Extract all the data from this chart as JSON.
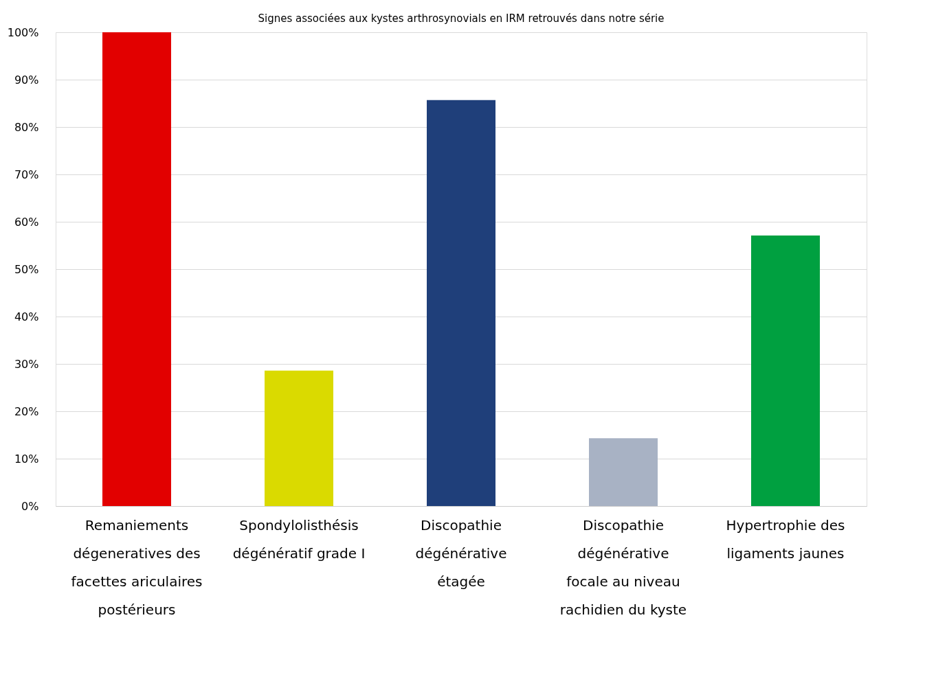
{
  "chart_data": {
    "type": "bar",
    "title": "Signes associées aux kystes arthrosynovials en IRM retrouvés dans notre série",
    "categories": [
      "Remaniements\ndégeneratives des\nfacettes ariculaires\npostérieurs",
      "Spondylolisthésis\ndégénératif grade I",
      "Discopathie\ndégénérative\nétagée",
      "Discopathie\ndégénérative\nfocale au niveau\nrachidien du kyste",
      "Hypertrophie des\nligaments jaunes"
    ],
    "values": [
      100,
      28.6,
      85.7,
      14.3,
      57.1
    ],
    "colors": [
      "#e20000",
      "#dada00",
      "#1f3f7a",
      "#a8b2c4",
      "#00a040"
    ],
    "ylim": [
      0,
      100
    ],
    "yticks": [
      {
        "value": 0,
        "label": "0%"
      },
      {
        "value": 10,
        "label": "10%"
      },
      {
        "value": 20,
        "label": "20%"
      },
      {
        "value": 30,
        "label": "30%"
      },
      {
        "value": 40,
        "label": "40%"
      },
      {
        "value": 50,
        "label": "50%"
      },
      {
        "value": 60,
        "label": "60%"
      },
      {
        "value": 70,
        "label": "70%"
      },
      {
        "value": 80,
        "label": "80%"
      },
      {
        "value": 90,
        "label": "90%"
      },
      {
        "value": 100,
        "label": "100%"
      }
    ],
    "grid": "y"
  }
}
